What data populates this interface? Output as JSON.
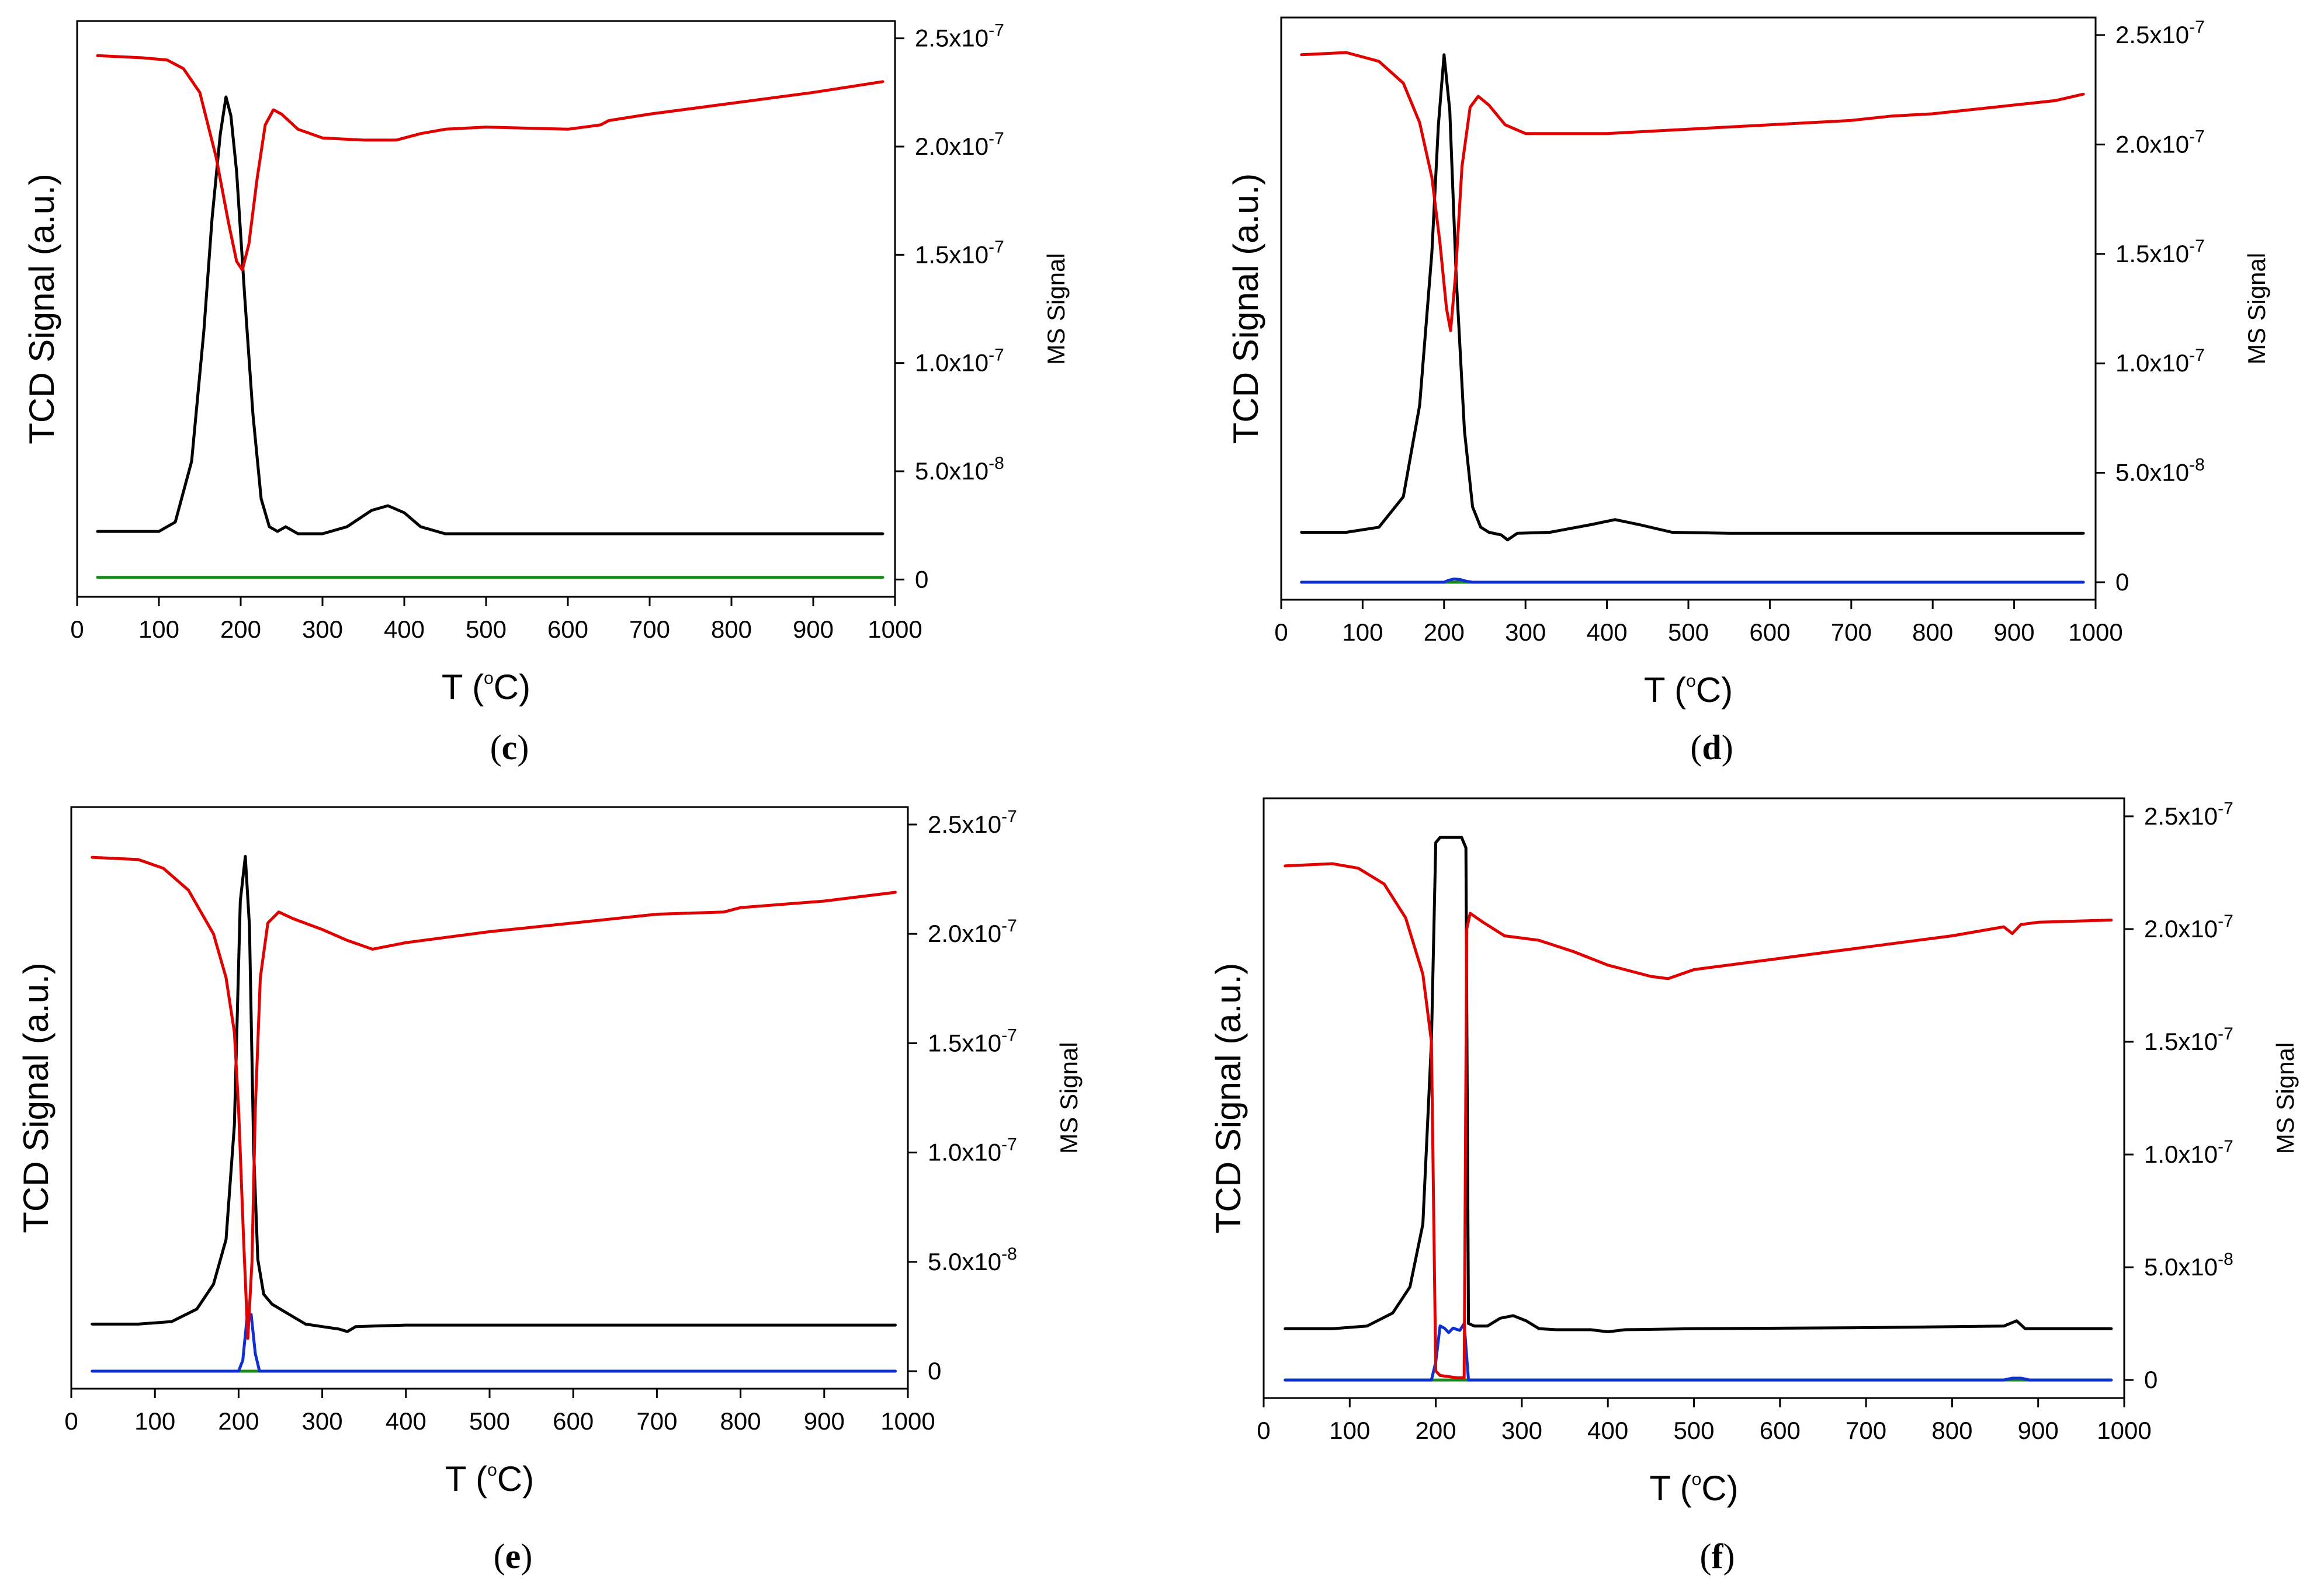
{
  "figure": {
    "caption_note": ""
  },
  "chart_data": [
    {
      "panel": "c",
      "caption": "c",
      "type": "line",
      "xlabel": "T (°C)",
      "xlabel_main": "T (",
      "xlabel_sup": "o",
      "xlabel_unit": "C)",
      "ylabel_left": "TCD Signal (a.u.)",
      "ylabel_right": "MS Signal",
      "xlim": [
        0,
        1000
      ],
      "ylim_right": [
        -8e-09,
        2.58e-07
      ],
      "x_ticks": [
        0,
        100,
        200,
        300,
        400,
        500,
        600,
        700,
        800,
        900,
        1000
      ],
      "y_right_ticks": [
        {
          "value": 0,
          "mant": "0",
          "exp": ""
        },
        {
          "value": 5e-08,
          "mant": "5.0x10",
          "exp": "-8"
        },
        {
          "value": 1e-07,
          "mant": "1.0x10",
          "exp": "-7"
        },
        {
          "value": 1.5e-07,
          "mant": "1.5x10",
          "exp": "-7"
        },
        {
          "value": 2e-07,
          "mant": "2.0x10",
          "exp": "-7"
        },
        {
          "value": 2.5e-07,
          "mant": "2.5x10",
          "exp": "-7"
        }
      ],
      "series": [
        {
          "name": "TCD",
          "axis": "left",
          "color": "#000000",
          "x": [
            25,
            60,
            100,
            120,
            140,
            155,
            165,
            175,
            182,
            188,
            195,
            205,
            215,
            225,
            235,
            245,
            255,
            270,
            300,
            330,
            360,
            380,
            400,
            420,
            450,
            500,
            600,
            700,
            800,
            900,
            985
          ],
          "y": [
            0.05,
            0.05,
            0.05,
            0.07,
            0.2,
            0.48,
            0.72,
            0.9,
            0.98,
            0.94,
            0.82,
            0.55,
            0.3,
            0.12,
            0.06,
            0.05,
            0.06,
            0.045,
            0.045,
            0.06,
            0.095,
            0.105,
            0.09,
            0.06,
            0.045,
            0.045,
            0.045,
            0.045,
            0.045,
            0.045,
            0.045
          ]
        },
        {
          "name": "MS red",
          "axis": "right",
          "color": "#e00000",
          "x": [
            25,
            80,
            110,
            130,
            150,
            170,
            185,
            195,
            202,
            210,
            220,
            230,
            240,
            250,
            270,
            300,
            350,
            390,
            420,
            450,
            500,
            600,
            640,
            650,
            700,
            800,
            900,
            985
          ],
          "y": [
            2.42e-07,
            2.41e-07,
            2.4e-07,
            2.36e-07,
            2.25e-07,
            1.95e-07,
            1.65e-07,
            1.47e-07,
            1.43e-07,
            1.55e-07,
            1.85e-07,
            2.1e-07,
            2.17e-07,
            2.15e-07,
            2.08e-07,
            2.04e-07,
            2.03e-07,
            2.03e-07,
            2.06e-07,
            2.08e-07,
            2.09e-07,
            2.08e-07,
            2.1e-07,
            2.12e-07,
            2.15e-07,
            2.2e-07,
            2.25e-07,
            2.3e-07
          ]
        },
        {
          "name": "MS green",
          "axis": "right",
          "color": "#1a8a1a",
          "x": [
            25,
            985
          ],
          "y": [
            1e-09,
            1e-09
          ]
        }
      ]
    },
    {
      "panel": "d",
      "caption": "d",
      "type": "line",
      "xlabel": "T (°C)",
      "xlabel_main": "T (",
      "xlabel_sup": "o",
      "xlabel_unit": "C)",
      "ylabel_left": "TCD Signal (a.u.)",
      "ylabel_right": "MS Signal",
      "xlim": [
        0,
        1000
      ],
      "ylim_right": [
        -8e-09,
        2.58e-07
      ],
      "x_ticks": [
        0,
        100,
        200,
        300,
        400,
        500,
        600,
        700,
        800,
        900,
        1000
      ],
      "y_right_ticks": [
        {
          "value": 0,
          "mant": "0",
          "exp": ""
        },
        {
          "value": 5e-08,
          "mant": "5.0x10",
          "exp": "-8"
        },
        {
          "value": 1e-07,
          "mant": "1.0x10",
          "exp": "-7"
        },
        {
          "value": 1.5e-07,
          "mant": "1.5x10",
          "exp": "-7"
        },
        {
          "value": 2e-07,
          "mant": "2.0x10",
          "exp": "-7"
        },
        {
          "value": 2.5e-07,
          "mant": "2.5x10",
          "exp": "-7"
        }
      ],
      "series": [
        {
          "name": "TCD",
          "axis": "left",
          "color": "#000000",
          "x": [
            25,
            80,
            120,
            150,
            170,
            185,
            193,
            200,
            207,
            215,
            225,
            235,
            245,
            255,
            270,
            278,
            290,
            330,
            380,
            410,
            440,
            480,
            550,
            600,
            700,
            800,
            900,
            985
          ],
          "y": [
            0.05,
            0.05,
            0.06,
            0.12,
            0.3,
            0.6,
            0.85,
            0.99,
            0.88,
            0.55,
            0.25,
            0.1,
            0.06,
            0.05,
            0.045,
            0.035,
            0.048,
            0.05,
            0.065,
            0.075,
            0.065,
            0.05,
            0.048,
            0.048,
            0.048,
            0.048,
            0.048,
            0.048
          ]
        },
        {
          "name": "MS red",
          "axis": "right",
          "color": "#e00000",
          "x": [
            25,
            80,
            120,
            150,
            170,
            185,
            195,
            203,
            208,
            214,
            222,
            232,
            242,
            255,
            275,
            300,
            400,
            500,
            600,
            700,
            750,
            800,
            850,
            900,
            950,
            985
          ],
          "y": [
            2.41e-07,
            2.42e-07,
            2.38e-07,
            2.28e-07,
            2.1e-07,
            1.85e-07,
            1.55e-07,
            1.25e-07,
            1.15e-07,
            1.4e-07,
            1.9e-07,
            2.17e-07,
            2.22e-07,
            2.18e-07,
            2.09e-07,
            2.05e-07,
            2.05e-07,
            2.07e-07,
            2.09e-07,
            2.11e-07,
            2.13e-07,
            2.14e-07,
            2.16e-07,
            2.18e-07,
            2.2e-07,
            2.23e-07
          ]
        },
        {
          "name": "MS blue",
          "axis": "right",
          "color": "#1030d0",
          "x": [
            25,
            200,
            205,
            212,
            220,
            228,
            235,
            985
          ],
          "y": [
            0,
            0,
            8e-10,
            1.5e-09,
            1.2e-09,
            4e-10,
            0,
            0
          ]
        },
        {
          "name": "MS green",
          "axis": "right",
          "color": "#1a8a1a",
          "x": [
            25,
            985
          ],
          "y": [
            0,
            0
          ]
        }
      ]
    },
    {
      "panel": "e",
      "caption": "e",
      "type": "line",
      "xlabel": "T (°C)",
      "xlabel_main": "T (",
      "xlabel_sup": "o",
      "xlabel_unit": "C)",
      "ylabel_left": "TCD Signal (a.u.)",
      "ylabel_right": "MS Signal",
      "xlim": [
        0,
        1000
      ],
      "ylim_right": [
        -8e-09,
        2.58e-07
      ],
      "x_ticks": [
        0,
        100,
        200,
        300,
        400,
        500,
        600,
        700,
        800,
        900,
        1000
      ],
      "y_right_ticks": [
        {
          "value": 0,
          "mant": "0",
          "exp": ""
        },
        {
          "value": 5e-08,
          "mant": "5.0x10",
          "exp": "-8"
        },
        {
          "value": 1e-07,
          "mant": "1.0x10",
          "exp": "-7"
        },
        {
          "value": 1.5e-07,
          "mant": "1.5x10",
          "exp": "-7"
        },
        {
          "value": 2e-07,
          "mant": "2.0x10",
          "exp": "-7"
        },
        {
          "value": 2.5e-07,
          "mant": "2.5x10",
          "exp": "-7"
        }
      ],
      "series": [
        {
          "name": "TCD",
          "axis": "left",
          "color": "#000000",
          "x": [
            25,
            80,
            120,
            150,
            170,
            185,
            195,
            202,
            208,
            213,
            218,
            223,
            230,
            240,
            260,
            280,
            300,
            320,
            330,
            340,
            400,
            500,
            600,
            700,
            800,
            900,
            985
          ],
          "y": [
            0.05,
            0.05,
            0.055,
            0.08,
            0.13,
            0.22,
            0.45,
            0.9,
            0.99,
            0.85,
            0.4,
            0.18,
            0.11,
            0.09,
            0.07,
            0.05,
            0.045,
            0.04,
            0.035,
            0.045,
            0.048,
            0.048,
            0.048,
            0.048,
            0.048,
            0.048,
            0.048
          ]
        },
        {
          "name": "MS red",
          "axis": "right",
          "color": "#e00000",
          "x": [
            25,
            80,
            110,
            140,
            170,
            185,
            195,
            200,
            206,
            211,
            216,
            220,
            226,
            235,
            248,
            265,
            300,
            330,
            360,
            400,
            500,
            600,
            700,
            780,
            800,
            900,
            985
          ],
          "y": [
            2.35e-07,
            2.34e-07,
            2.3e-07,
            2.2e-07,
            2e-07,
            1.8e-07,
            1.55e-07,
            1.2e-07,
            6e-08,
            1.5e-08,
            5e-08,
            1.2e-07,
            1.8e-07,
            2.05e-07,
            2.1e-07,
            2.07e-07,
            2.02e-07,
            1.97e-07,
            1.93e-07,
            1.96e-07,
            2.01e-07,
            2.05e-07,
            2.09e-07,
            2.1e-07,
            2.12e-07,
            2.15e-07,
            2.19e-07
          ]
        },
        {
          "name": "MS blue",
          "axis": "right",
          "color": "#1030d0",
          "x": [
            25,
            200,
            205,
            210,
            215,
            220,
            225,
            985
          ],
          "y": [
            0,
            0,
            5e-09,
            2.4e-08,
            2.6e-08,
            8e-09,
            0,
            0
          ]
        },
        {
          "name": "MS green",
          "axis": "right",
          "color": "#1a8a1a",
          "x": [
            25,
            985
          ],
          "y": [
            0,
            0
          ]
        }
      ]
    },
    {
      "panel": "f",
      "caption": "f",
      "type": "line",
      "xlabel": "T (°C)",
      "xlabel_main": "T (",
      "xlabel_sup": "o",
      "xlabel_unit": "C)",
      "ylabel_left": "TCD Signal (a.u.)",
      "ylabel_right": "MS Signal",
      "xlim": [
        0,
        1000
      ],
      "ylim_right": [
        -8e-09,
        2.58e-07
      ],
      "x_ticks": [
        0,
        100,
        200,
        300,
        400,
        500,
        600,
        700,
        800,
        900,
        1000
      ],
      "y_right_ticks": [
        {
          "value": 0,
          "mant": "0",
          "exp": ""
        },
        {
          "value": 5e-08,
          "mant": "5.0x10",
          "exp": "-8"
        },
        {
          "value": 1e-07,
          "mant": "1.0x10",
          "exp": "-7"
        },
        {
          "value": 1.5e-07,
          "mant": "1.5x10",
          "exp": "-7"
        },
        {
          "value": 2e-07,
          "mant": "2.0x10",
          "exp": "-7"
        },
        {
          "value": 2.5e-07,
          "mant": "2.5x10",
          "exp": "-7"
        }
      ],
      "series": [
        {
          "name": "TCD",
          "axis": "left",
          "color": "#000000",
          "x": [
            25,
            80,
            120,
            150,
            170,
            185,
            195,
            200,
            205,
            230,
            235,
            238,
            245,
            260,
            275,
            290,
            305,
            320,
            340,
            380,
            400,
            420,
            500,
            700,
            860,
            875,
            885,
            900,
            985
          ],
          "y": [
            0.05,
            0.05,
            0.055,
            0.08,
            0.13,
            0.25,
            0.6,
            0.98,
            0.99,
            0.99,
            0.97,
            0.06,
            0.055,
            0.055,
            0.07,
            0.075,
            0.065,
            0.05,
            0.048,
            0.048,
            0.044,
            0.048,
            0.05,
            0.052,
            0.055,
            0.065,
            0.05,
            0.05,
            0.05
          ]
        },
        {
          "name": "MS red",
          "axis": "right",
          "color": "#e00000",
          "x": [
            25,
            80,
            110,
            140,
            165,
            185,
            195,
            200,
            205,
            225,
            233,
            236,
            240,
            255,
            280,
            320,
            360,
            400,
            450,
            470,
            500,
            600,
            700,
            800,
            860,
            870,
            880,
            900,
            985
          ],
          "y": [
            2.28e-07,
            2.29e-07,
            2.27e-07,
            2.2e-07,
            2.05e-07,
            1.8e-07,
            1.5e-07,
            4e-09,
            2e-09,
            1e-09,
            1e-09,
            2e-07,
            2.07e-07,
            2.03e-07,
            1.97e-07,
            1.95e-07,
            1.9e-07,
            1.84e-07,
            1.79e-07,
            1.78e-07,
            1.82e-07,
            1.87e-07,
            1.92e-07,
            1.97e-07,
            2.01e-07,
            1.98e-07,
            2.02e-07,
            2.03e-07,
            2.04e-07
          ]
        },
        {
          "name": "MS blue",
          "axis": "right",
          "color": "#1030d0",
          "x": [
            25,
            195,
            200,
            205,
            210,
            215,
            220,
            228,
            233,
            238,
            860,
            870,
            880,
            890,
            985
          ],
          "y": [
            0,
            0,
            8e-09,
            2.4e-08,
            2.3e-08,
            2.1e-08,
            2.3e-08,
            2.2e-08,
            2.5e-08,
            0,
            0,
            8e-10,
            8e-10,
            0,
            0
          ]
        },
        {
          "name": "MS green",
          "axis": "right",
          "color": "#1a8a1a",
          "x": [
            25,
            985
          ],
          "y": [
            0,
            0
          ]
        }
      ]
    }
  ]
}
